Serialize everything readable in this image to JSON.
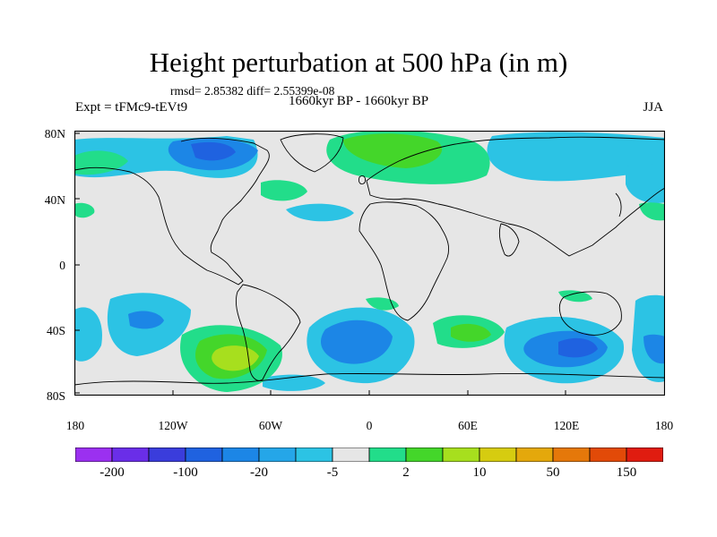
{
  "title": "Height perturbation at 500 hPa (in m)",
  "stats": "rmsd= 2.85382 diff= 2.55399e-08",
  "experiment": "Expt = tFMc9-tEVt9",
  "period": "1660kyr BP - 1660kyr BP",
  "season": "JJA",
  "map": {
    "projection": "cylindrical equidistant",
    "field": "500 hPa height perturbation (m)",
    "lat_ticks": [
      "80N",
      "40N",
      "0",
      "40S",
      "80S"
    ],
    "lon_ticks": [
      "180",
      "120W",
      "60W",
      "0",
      "60E",
      "120E",
      "180"
    ],
    "background_color": "#e6e6e6"
  },
  "colorbar": {
    "labels": [
      "-200",
      "-100",
      "-20",
      "-5",
      "2",
      "10",
      "50",
      "150"
    ],
    "colors": [
      "#9b30f0",
      "#6a2ee8",
      "#3a3ddc",
      "#1f62e0",
      "#1c86e6",
      "#25a6e8",
      "#2cc3e4",
      "#e6e6e6",
      "#22dd8a",
      "#44d62a",
      "#a7df1e",
      "#d6cc10",
      "#e4a80c",
      "#e5780a",
      "#e24a08",
      "#e01c10"
    ]
  }
}
